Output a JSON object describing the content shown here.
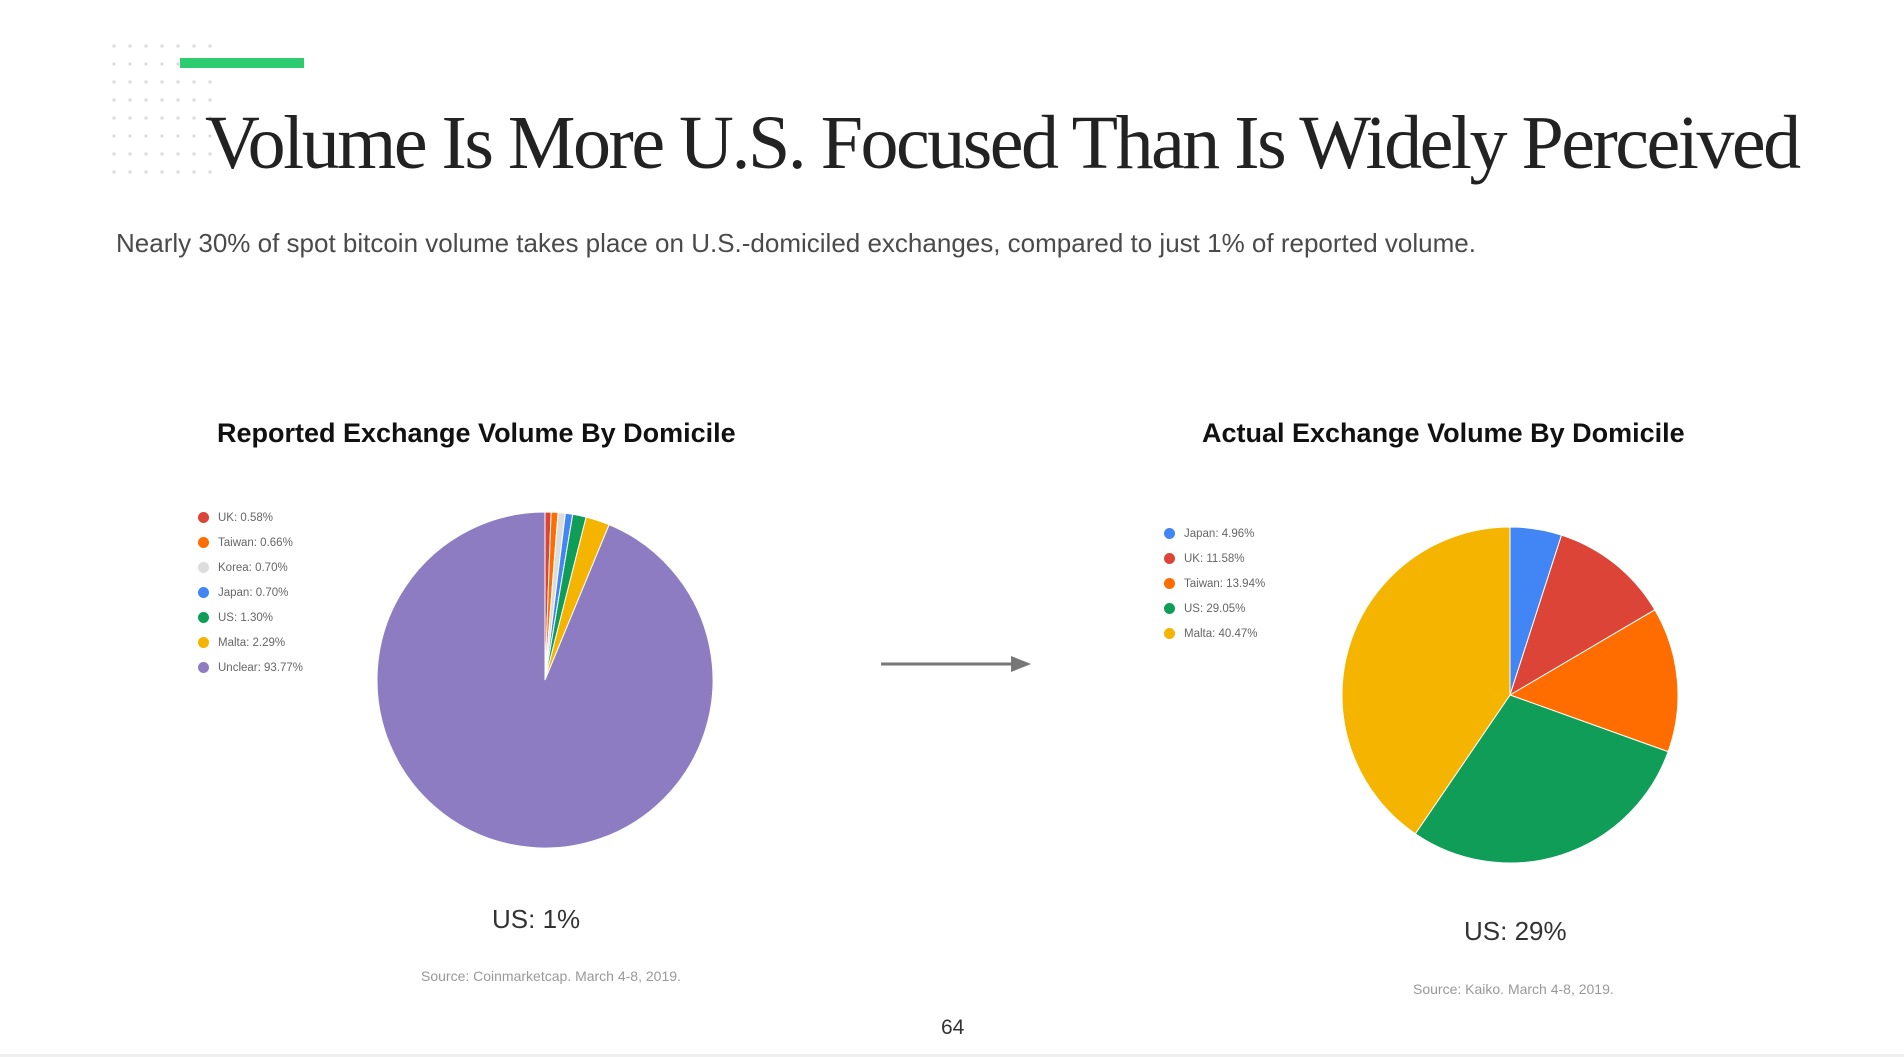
{
  "header": {
    "title": "Volume Is More U.S. Focused Than Is Widely Perceived",
    "subtitle": "Nearly 30% of spot bitcoin volume takes place on U.S.-domiciled exchanges, compared to just 1% of reported volume.",
    "accent_color": "#2ecc71"
  },
  "chart_data": [
    {
      "type": "pie",
      "title": "Reported Exchange Volume By Domicile",
      "legend_position": "left",
      "slices": [
        {
          "label": "UK",
          "value": 0.58,
          "legend": "UK: 0.58%",
          "color": "#db4437"
        },
        {
          "label": "Taiwan",
          "value": 0.66,
          "legend": "Taiwan: 0.66%",
          "color": "#ff6d00"
        },
        {
          "label": "Korea",
          "value": 0.7,
          "legend": "Korea: 0.70%",
          "color": "#dcdcdc"
        },
        {
          "label": "Japan",
          "value": 0.7,
          "legend": "Japan: 0.70%",
          "color": "#4285f4"
        },
        {
          "label": "US",
          "value": 1.3,
          "legend": "US: 1.30%",
          "color": "#0f9d58"
        },
        {
          "label": "Malta",
          "value": 2.29,
          "legend": "Malta: 2.29%",
          "color": "#f4b400"
        },
        {
          "label": "Unclear",
          "value": 93.77,
          "legend": "Unclear: 93.77%",
          "color": "#8e7cc3"
        }
      ],
      "callout": "US: 1%",
      "source": "Source: Coinmarketcap. March 4-8, 2019."
    },
    {
      "type": "pie",
      "title": "Actual Exchange Volume By Domicile",
      "legend_position": "left",
      "slices": [
        {
          "label": "Japan",
          "value": 4.96,
          "legend": "Japan: 4.96%",
          "color": "#4285f4"
        },
        {
          "label": "UK",
          "value": 11.58,
          "legend": "UK: 11.58%",
          "color": "#db4437"
        },
        {
          "label": "Taiwan",
          "value": 13.94,
          "legend": "Taiwan: 13.94%",
          "color": "#ff6d00"
        },
        {
          "label": "US",
          "value": 29.05,
          "legend": "US: 29.05%",
          "color": "#0f9d58"
        },
        {
          "label": "Malta",
          "value": 40.47,
          "legend": "Malta: 40.47%",
          "color": "#f4b400"
        }
      ],
      "callout": "US: 29%",
      "source": "Source: Kaiko. March 4-8, 2019."
    }
  ],
  "footer": {
    "page_number": "64"
  }
}
